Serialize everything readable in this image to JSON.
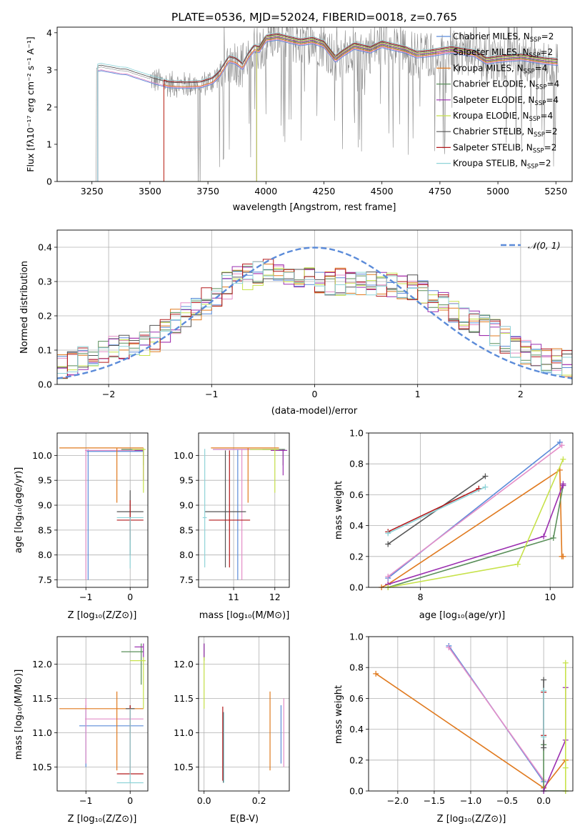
{
  "figure": {
    "title": "PLATE=0536, MJD=52024, FIBERID=0018, z=0.765"
  },
  "colors": {
    "spectrum": "#888888",
    "gauss": "#5b8bd9",
    "grid": "#b0b0b0",
    "models": [
      "#5b8bd9",
      "#e48ec8",
      "#e07a1f",
      "#5a8f5a",
      "#9b2fb0",
      "#c7e24a",
      "#555555",
      "#b3191b",
      "#8fd3d8"
    ]
  },
  "models": [
    {
      "name": "Chabrier MILES, N",
      "sub": "SSP",
      "suffix": "=2"
    },
    {
      "name": "Salpeter MILES, N",
      "sub": "SSP",
      "suffix": "=2"
    },
    {
      "name": "Kroupa MILES, N",
      "sub": "SSP",
      "suffix": "=4"
    },
    {
      "name": "Chabrier ELODIE, N",
      "sub": "SSP",
      "suffix": "=4"
    },
    {
      "name": "Salpeter ELODIE, N",
      "sub": "SSP",
      "suffix": "=4"
    },
    {
      "name": "Kroupa ELODIE, N",
      "sub": "SSP",
      "suffix": "=4"
    },
    {
      "name": "Chabrier STELIB, N",
      "sub": "SSP",
      "suffix": "=2"
    },
    {
      "name": "Salpeter STELIB, N",
      "sub": "SSP",
      "suffix": "=2"
    },
    {
      "name": "Kroupa STELIB, N",
      "sub": "SSP",
      "suffix": "=2"
    }
  ],
  "labels": {
    "spec_ylabel": "Flux [fλ10⁻¹⁷ erg cm⁻² s⁻¹ A⁻¹]",
    "spec_xlabel": "wavelength [Angstrom, rest frame]",
    "hist_ylabel": "Normed distribution",
    "hist_xlabel": "(data-model)/error",
    "hist_legend": "𝒩(0, 1)",
    "age_ylabel": "age  [log₁₀(age/yr)]",
    "z_xlabel": "Z [log₁₀(Z/Z⊙)]",
    "mass_xlabel": "mass [log₁₀(M/M⊙)]",
    "mw_ylabel": "mass weight",
    "age_xlabel": "age  [log₁₀(age/yr)]",
    "mass_ylabel": "mass [log₁₀(M/M⊙)]",
    "ebv_xlabel": "E(B-V)"
  },
  "chart_data": [
    {
      "id": "spectrum",
      "type": "line",
      "xlim": [
        3100,
        5320
      ],
      "ylim": [
        0,
        4.15
      ],
      "xticks": [
        3250,
        3500,
        3750,
        4000,
        4250,
        4500,
        4750,
        5000,
        5250
      ],
      "yticks": [
        0,
        1,
        2,
        3,
        4
      ],
      "data_range": [
        3140,
        5260
      ],
      "model_start": [
        3275,
        3275,
        3560,
        3960,
        3960,
        3960,
        3275,
        3560,
        3275
      ],
      "profile": [
        [
          3270,
          3.05
        ],
        [
          3290,
          3.08
        ],
        [
          3310,
          3.05
        ],
        [
          3340,
          3.02
        ],
        [
          3370,
          2.98
        ],
        [
          3400,
          2.97
        ],
        [
          3430,
          2.9
        ],
        [
          3470,
          2.82
        ],
        [
          3520,
          2.72
        ],
        [
          3580,
          2.62
        ],
        [
          3650,
          2.6
        ],
        [
          3720,
          2.62
        ],
        [
          3770,
          2.72
        ],
        [
          3800,
          2.9
        ],
        [
          3840,
          3.3
        ],
        [
          3870,
          3.25
        ],
        [
          3900,
          3.1
        ],
        [
          3920,
          3.35
        ],
        [
          3950,
          3.6
        ],
        [
          3970,
          3.55
        ],
        [
          4000,
          3.85
        ],
        [
          4050,
          3.9
        ],
        [
          4100,
          3.82
        ],
        [
          4150,
          3.75
        ],
        [
          4200,
          3.8
        ],
        [
          4250,
          3.7
        ],
        [
          4300,
          3.3
        ],
        [
          4330,
          3.45
        ],
        [
          4380,
          3.65
        ],
        [
          4450,
          3.55
        ],
        [
          4500,
          3.7
        ],
        [
          4550,
          3.62
        ],
        [
          4600,
          3.55
        ],
        [
          4650,
          3.42
        ],
        [
          4700,
          3.45
        ],
        [
          4800,
          3.55
        ],
        [
          4900,
          3.45
        ],
        [
          4950,
          3.25
        ],
        [
          5000,
          3.3
        ],
        [
          5100,
          3.35
        ],
        [
          5200,
          3.25
        ],
        [
          5260,
          3.22
        ]
      ]
    },
    {
      "id": "residual-histogram",
      "type": "bar",
      "xlim": [
        -2.5,
        2.5
      ],
      "ylim": [
        0,
        0.45
      ],
      "xticks": [
        -2,
        -1,
        0,
        1,
        2
      ],
      "yticks": [
        0.0,
        0.1,
        0.2,
        0.3,
        0.4
      ],
      "bin_width": 0.1,
      "envelope": [
        [
          -2.5,
          0.04
        ],
        [
          -2.2,
          0.08
        ],
        [
          -2.0,
          0.1
        ],
        [
          -1.6,
          0.12
        ],
        [
          -1.3,
          0.2
        ],
        [
          -1.0,
          0.25
        ],
        [
          -0.8,
          0.3
        ],
        [
          -0.5,
          0.33
        ],
        [
          -0.3,
          0.33
        ],
        [
          0.0,
          0.3
        ],
        [
          0.3,
          0.3
        ],
        [
          0.6,
          0.29
        ],
        [
          0.8,
          0.29
        ],
        [
          1.0,
          0.28
        ],
        [
          1.3,
          0.22
        ],
        [
          1.6,
          0.18
        ],
        [
          1.9,
          0.12
        ],
        [
          2.1,
          0.08
        ],
        [
          2.5,
          0.06
        ]
      ],
      "gaussian": {
        "name": "𝒩(0, 1)",
        "mu": 0,
        "sigma": 1
      }
    },
    {
      "id": "age-vs-Z",
      "type": "scatter",
      "xlim": [
        -1.65,
        0.4
      ],
      "ylim": [
        7.35,
        10.45
      ],
      "xticks": [
        -1,
        0
      ],
      "yticks": [
        7.5,
        8.0,
        8.5,
        9.0,
        9.5,
        10.0
      ],
      "points": [
        {
          "m": 0,
          "x": -0.95,
          "y": 10.08,
          "xl": -0.98,
          "xh": 0.3,
          "yl": 7.5,
          "yh": 10.12
        },
        {
          "m": 1,
          "x": -1.0,
          "y": 10.1,
          "xl": -1.02,
          "xh": 0.3,
          "yl": 7.5,
          "yh": 10.12
        },
        {
          "m": 2,
          "x": -0.3,
          "y": 10.15,
          "xl": -1.6,
          "xh": 0.3,
          "yl": 9.05,
          "yh": 10.15
        },
        {
          "m": 3,
          "x": 0.3,
          "y": 10.12,
          "xl": -0.2,
          "xh": 0.3,
          "yl": 9.8,
          "yh": 10.13
        },
        {
          "m": 4,
          "x": 0.3,
          "y": 10.1,
          "xl": 0.1,
          "xh": 0.3,
          "yl": 9.5,
          "yh": 10.12
        },
        {
          "m": 5,
          "x": 0.3,
          "y": 10.12,
          "xl": 0.05,
          "xh": 0.35,
          "yl": 9.25,
          "yh": 10.15
        },
        {
          "m": 6,
          "x": 0.0,
          "y": 8.87,
          "xl": -0.3,
          "xh": 0.3,
          "yl": 8.0,
          "yh": 9.3
        },
        {
          "m": 7,
          "x": 0.0,
          "y": 8.7,
          "xl": -0.3,
          "xh": 0.3,
          "yl": 8.3,
          "yh": 9.1
        },
        {
          "m": 8,
          "x": 0.0,
          "y": 8.75,
          "xl": -0.3,
          "xh": 0.3,
          "yl": 7.73,
          "yh": 8.75
        }
      ]
    },
    {
      "id": "age-vs-mass",
      "type": "scatter",
      "xlim": [
        10.15,
        12.35
      ],
      "ylim": [
        7.35,
        10.45
      ],
      "xticks": [
        11,
        12
      ],
      "yticks": [
        7.5,
        8.0,
        8.5,
        9.0,
        9.5,
        10.0
      ],
      "points": [
        {
          "m": 0,
          "x": 11.1,
          "y": 10.12,
          "xl": 10.5,
          "xh": 12.1,
          "yl": 7.5,
          "yh": 10.12
        },
        {
          "m": 1,
          "x": 11.2,
          "y": 10.12,
          "xl": 10.5,
          "xh": 12.2,
          "yl": 7.5,
          "yh": 10.13
        },
        {
          "m": 2,
          "x": 11.35,
          "y": 10.15,
          "xl": 10.45,
          "xh": 12.1,
          "yl": 9.05,
          "yh": 10.15
        },
        {
          "m": 3,
          "x": 12.2,
          "y": 10.12,
          "xl": 11.7,
          "xh": 12.25,
          "yl": 9.8,
          "yh": 10.13
        },
        {
          "m": 4,
          "x": 12.2,
          "y": 10.1,
          "xl": 11.9,
          "xh": 12.3,
          "yl": 9.6,
          "yh": 10.12
        },
        {
          "m": 5,
          "x": 12.0,
          "y": 10.12,
          "xl": 11.4,
          "xh": 12.1,
          "yl": 9.25,
          "yh": 10.15
        },
        {
          "m": 6,
          "x": 10.8,
          "y": 8.87,
          "xl": 10.3,
          "xh": 11.3,
          "yl": 7.75,
          "yh": 10.1
        },
        {
          "m": 7,
          "x": 10.9,
          "y": 8.7,
          "xl": 10.4,
          "xh": 11.4,
          "yl": 7.75,
          "yh": 10.1
        },
        {
          "m": 8,
          "x": 10.3,
          "y": 8.75,
          "xl": 10.25,
          "xh": 10.35,
          "yl": 7.75,
          "yh": 10.13
        }
      ]
    },
    {
      "id": "massweight-vs-age",
      "type": "line",
      "xlim": [
        7.2,
        10.35
      ],
      "ylim": [
        0,
        1.0
      ],
      "xticks": [
        8,
        10
      ],
      "yticks": [
        0.0,
        0.2,
        0.4,
        0.6,
        0.8,
        1.0
      ],
      "series": [
        {
          "m": 0,
          "x": [
            7.5,
            10.15
          ],
          "y": [
            0.06,
            0.94
          ]
        },
        {
          "m": 1,
          "x": [
            7.5,
            10.18
          ],
          "y": [
            0.07,
            0.92
          ]
        },
        {
          "m": 2,
          "x": [
            7.4,
            7.5,
            10.15,
            10.18,
            10.2
          ],
          "y": [
            0.0,
            0.02,
            0.76,
            0.2,
            0.2
          ]
        },
        {
          "m": 3,
          "x": [
            7.5,
            10.05,
            10.2
          ],
          "y": [
            0.0,
            0.32,
            0.66
          ]
        },
        {
          "m": 4,
          "x": [
            7.5,
            9.9,
            10.2,
            10.2
          ],
          "y": [
            0.02,
            0.33,
            0.67,
            0.66
          ]
        },
        {
          "m": 5,
          "x": [
            7.5,
            9.5,
            10.2
          ],
          "y": [
            0.0,
            0.15,
            0.83
          ]
        },
        {
          "m": 6,
          "x": [
            7.5,
            9.0
          ],
          "y": [
            0.28,
            0.72
          ]
        },
        {
          "m": 7,
          "x": [
            7.5,
            8.9
          ],
          "y": [
            0.36,
            0.64
          ]
        },
        {
          "m": 8,
          "x": [
            7.5,
            9.0
          ],
          "y": [
            0.35,
            0.65
          ]
        }
      ]
    },
    {
      "id": "mass-vs-Z",
      "type": "scatter",
      "xlim": [
        -1.65,
        0.4
      ],
      "ylim": [
        10.15,
        12.4
      ],
      "xticks": [
        -1,
        0
      ],
      "yticks": [
        10.5,
        11.0,
        11.5,
        12.0
      ],
      "points": [
        {
          "m": 0,
          "x": -1.0,
          "y": 11.1,
          "xl": -1.15,
          "xh": 0.3,
          "yl": 10.5,
          "yh": 11.4
        },
        {
          "m": 1,
          "x": -1.0,
          "y": 11.2,
          "xl": -1.02,
          "xh": 0.3,
          "yl": 10.55,
          "yh": 11.5
        },
        {
          "m": 2,
          "x": -0.3,
          "y": 11.35,
          "xl": -1.6,
          "xh": 0.3,
          "yl": 10.45,
          "yh": 11.6
        },
        {
          "m": 3,
          "x": 0.25,
          "y": 12.18,
          "xl": -0.2,
          "xh": 0.3,
          "yl": 11.7,
          "yh": 12.3
        },
        {
          "m": 4,
          "x": 0.3,
          "y": 12.25,
          "xl": 0.1,
          "xh": 0.3,
          "yl": 12.1,
          "yh": 12.3
        },
        {
          "m": 5,
          "x": 0.3,
          "y": 12.05,
          "xl": 0.0,
          "xh": 0.35,
          "yl": 11.35,
          "yh": 12.1
        },
        {
          "m": 6,
          "x": 0.0,
          "y": 11.35,
          "xl": -0.1,
          "xh": 0.1,
          "yl": 11.0,
          "yh": 11.4
        },
        {
          "m": 7,
          "x": 0.0,
          "y": 10.4,
          "xl": -0.3,
          "xh": 0.3,
          "yl": 10.4,
          "yh": 11.4
        },
        {
          "m": 8,
          "x": 0.0,
          "y": 10.27,
          "xl": -0.3,
          "xh": 0.3,
          "yl": 10.27,
          "yh": 11.35
        }
      ]
    },
    {
      "id": "mass-vs-ebv",
      "type": "scatter",
      "xlim": [
        -0.02,
        0.31
      ],
      "ylim": [
        10.15,
        12.4
      ],
      "xticks": [
        0.0,
        0.2
      ],
      "yticks": [
        10.5,
        11.0,
        11.5,
        12.0
      ],
      "points": [
        {
          "m": 0,
          "x": 0.28,
          "y": 11.1,
          "xl": 0.28,
          "xh": 0.28,
          "yl": 10.55,
          "yh": 11.4
        },
        {
          "m": 1,
          "x": 0.29,
          "y": 11.2,
          "xl": 0.29,
          "xh": 0.29,
          "yl": 10.5,
          "yh": 11.5
        },
        {
          "m": 2,
          "x": 0.24,
          "y": 11.35,
          "xl": 0.24,
          "xh": 0.24,
          "yl": 10.45,
          "yh": 11.6
        },
        {
          "m": 3,
          "x": 0.0,
          "y": 12.18,
          "xl": 0.0,
          "xh": 0.0,
          "yl": 12.05,
          "yh": 12.3
        },
        {
          "m": 4,
          "x": 0.0,
          "y": 12.25,
          "xl": 0.0,
          "xh": 0.0,
          "yl": 12.1,
          "yh": 12.3
        },
        {
          "m": 5,
          "x": 0.0,
          "y": 12.05,
          "xl": 0.0,
          "xh": 0.0,
          "yl": 11.35,
          "yh": 12.1
        },
        {
          "m": 6,
          "x": 0.07,
          "y": 11.0,
          "xl": 0.07,
          "xh": 0.07,
          "yl": 10.27,
          "yh": 11.3
        },
        {
          "m": 7,
          "x": 0.068,
          "y": 11.1,
          "xl": 0.068,
          "xh": 0.068,
          "yl": 10.3,
          "yh": 11.38
        },
        {
          "m": 8,
          "x": 0.072,
          "y": 10.8,
          "xl": 0.072,
          "xh": 0.072,
          "yl": 10.27,
          "yh": 11.3
        }
      ]
    },
    {
      "id": "massweight-vs-Z",
      "type": "line",
      "xlim": [
        -2.4,
        0.4
      ],
      "ylim": [
        0,
        1.0
      ],
      "xticks": [
        -2.0,
        -1.5,
        -1.0,
        -0.5,
        0.0
      ],
      "yticks": [
        0.0,
        0.2,
        0.4,
        0.6,
        0.8,
        1.0
      ],
      "series": [
        {
          "m": 0,
          "x": [
            -1.3,
            0.0
          ],
          "y": [
            0.94,
            0.06
          ]
        },
        {
          "m": 1,
          "x": [
            -1.3,
            0.0
          ],
          "y": [
            0.93,
            0.07
          ]
        },
        {
          "m": 2,
          "x": [
            -2.3,
            0.0,
            0.3,
            0.3
          ],
          "y": [
            0.76,
            0.02,
            0.2,
            0.2
          ]
        },
        {
          "m": 3,
          "x": [
            0.0,
            0.0,
            0.3
          ],
          "y": [
            0.3,
            0.0,
            0.0
          ]
        },
        {
          "m": 4,
          "x": [
            0.0,
            0.3,
            0.3
          ],
          "y": [
            0.0,
            0.33,
            0.67
          ]
        },
        {
          "m": 5,
          "x": [
            0.3,
            0.3,
            0.3
          ],
          "y": [
            0.0,
            0.15,
            0.83
          ]
        },
        {
          "m": 6,
          "x": [
            0.0,
            0.0
          ],
          "y": [
            0.72,
            0.28
          ]
        },
        {
          "m": 7,
          "x": [
            0.0,
            0.0
          ],
          "y": [
            0.64,
            0.36
          ]
        },
        {
          "m": 8,
          "x": [
            0.0,
            0.0
          ],
          "y": [
            0.65,
            0.35
          ]
        }
      ]
    }
  ]
}
